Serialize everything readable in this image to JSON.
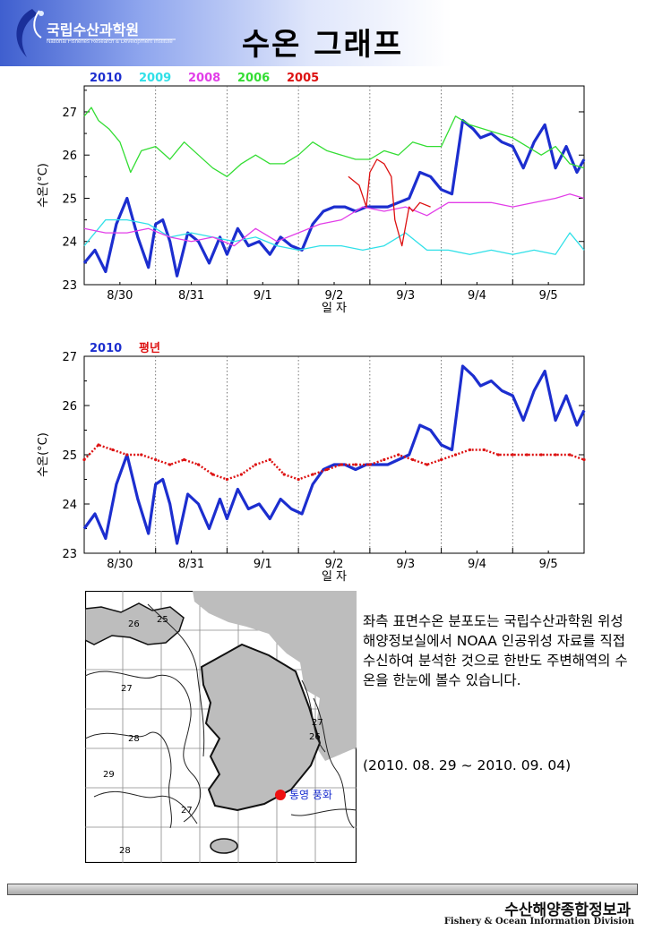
{
  "header": {
    "org_name": "국립수산과학원",
    "org_sub": "National Fisheries Research & Development Institute",
    "title": "수온 그래프"
  },
  "chart_data": [
    {
      "type": "line",
      "xlabel": "일 자",
      "ylabel": "수온(°C)",
      "ylim": [
        23,
        27.6
      ],
      "yticks": [
        23,
        24,
        25,
        26,
        27
      ],
      "xlim": [
        0,
        7
      ],
      "xtick_labels": [
        "8/30",
        "8/31",
        "9/1",
        "9/2",
        "9/3",
        "9/4",
        "9/5"
      ],
      "grid": "vertical dotted day boundaries",
      "legend": "top-left",
      "series": [
        {
          "name": "2010",
          "color": "#1c2ecf",
          "x": [
            0,
            0.15,
            0.3,
            0.45,
            0.6,
            0.75,
            0.9,
            1.0,
            1.1,
            1.2,
            1.3,
            1.45,
            1.6,
            1.75,
            1.9,
            2.0,
            2.15,
            2.3,
            2.45,
            2.6,
            2.75,
            2.9,
            3.05,
            3.2,
            3.35,
            3.5,
            3.65,
            3.8,
            3.95,
            4.1,
            4.25,
            4.4,
            4.55,
            4.7,
            4.85,
            5.0,
            5.15,
            5.3,
            5.45,
            5.55,
            5.7,
            5.85,
            6.0,
            6.15,
            6.3,
            6.45,
            6.6,
            6.75,
            6.9,
            7.0
          ],
          "values": [
            23.5,
            23.8,
            23.3,
            24.4,
            25.0,
            24.1,
            23.4,
            24.4,
            24.5,
            24.0,
            23.2,
            24.2,
            24.0,
            23.5,
            24.1,
            23.7,
            24.3,
            23.9,
            24.0,
            23.7,
            24.1,
            23.9,
            23.8,
            24.4,
            24.7,
            24.8,
            24.8,
            24.7,
            24.8,
            24.8,
            24.8,
            24.9,
            25.0,
            25.6,
            25.5,
            25.2,
            25.1,
            26.8,
            26.6,
            26.4,
            26.5,
            26.3,
            26.2,
            25.7,
            26.3,
            26.7,
            25.7,
            26.2,
            25.6,
            25.9
          ]
        },
        {
          "name": "2009",
          "color": "#30e0e8",
          "x": [
            0,
            0.3,
            0.6,
            0.9,
            1.2,
            1.5,
            1.8,
            2.1,
            2.4,
            2.7,
            3.0,
            3.3,
            3.6,
            3.9,
            4.2,
            4.5,
            4.8,
            5.1,
            5.4,
            5.7,
            6.0,
            6.3,
            6.6,
            6.8,
            7.0
          ],
          "values": [
            23.9,
            24.5,
            24.5,
            24.4,
            24.1,
            24.2,
            24.1,
            24.0,
            24.1,
            23.9,
            23.8,
            23.9,
            23.9,
            23.8,
            23.9,
            24.2,
            23.8,
            23.8,
            23.7,
            23.8,
            23.7,
            23.8,
            23.7,
            24.2,
            23.8
          ]
        },
        {
          "name": "2008",
          "color": "#e23ee8",
          "x": [
            0,
            0.3,
            0.6,
            0.9,
            1.2,
            1.5,
            1.8,
            2.1,
            2.4,
            2.7,
            3.0,
            3.3,
            3.6,
            3.9,
            4.2,
            4.5,
            4.8,
            5.1,
            5.4,
            5.7,
            6.0,
            6.3,
            6.6,
            6.8,
            7.0
          ],
          "values": [
            24.3,
            24.2,
            24.2,
            24.3,
            24.1,
            24.0,
            24.1,
            23.9,
            24.3,
            24.0,
            24.2,
            24.4,
            24.5,
            24.8,
            24.7,
            24.8,
            24.6,
            24.9,
            24.9,
            24.9,
            24.8,
            24.9,
            25.0,
            25.1,
            25.0
          ]
        },
        {
          "name": "2006",
          "color": "#33dd33",
          "x": [
            0,
            0.1,
            0.2,
            0.35,
            0.5,
            0.65,
            0.8,
            1.0,
            1.2,
            1.4,
            1.6,
            1.8,
            2.0,
            2.2,
            2.4,
            2.6,
            2.8,
            3.0,
            3.2,
            3.4,
            3.6,
            3.8,
            4.0,
            4.2,
            4.4,
            4.6,
            4.8,
            5.0,
            5.2,
            5.4,
            5.6,
            5.8,
            6.0,
            6.2,
            6.4,
            6.6,
            6.8,
            7.0
          ],
          "values": [
            26.9,
            27.1,
            26.8,
            26.6,
            26.3,
            25.6,
            26.1,
            26.2,
            25.9,
            26.3,
            26.0,
            25.7,
            25.5,
            25.8,
            26.0,
            25.8,
            25.8,
            26.0,
            26.3,
            26.1,
            26.0,
            25.9,
            25.9,
            26.1,
            26.0,
            26.3,
            26.2,
            26.2,
            26.9,
            26.7,
            26.6,
            26.5,
            26.4,
            26.2,
            26.0,
            26.2,
            25.8,
            25.7
          ]
        },
        {
          "name": "2005",
          "color": "#dd1111",
          "x": [
            3.7,
            3.85,
            3.95,
            4.0,
            4.1,
            4.2,
            4.3,
            4.35,
            4.45,
            4.55,
            4.6,
            4.7,
            4.85
          ],
          "values": [
            25.5,
            25.3,
            24.8,
            25.6,
            25.9,
            25.8,
            25.5,
            24.5,
            23.9,
            24.8,
            24.7,
            24.9,
            24.8
          ]
        }
      ]
    },
    {
      "type": "line",
      "xlabel": "일 자",
      "ylabel": "수온(°C)",
      "ylim": [
        23,
        27
      ],
      "yticks": [
        23,
        24,
        25,
        26,
        27
      ],
      "xlim": [
        0,
        7
      ],
      "xtick_labels": [
        "8/30",
        "8/31",
        "9/1",
        "9/2",
        "9/3",
        "9/4",
        "9/5"
      ],
      "grid": "vertical dotted day boundaries",
      "legend": "top-left",
      "series": [
        {
          "name": "2010",
          "color": "#1c2ecf",
          "x": [
            0,
            0.15,
            0.3,
            0.45,
            0.6,
            0.75,
            0.9,
            1.0,
            1.1,
            1.2,
            1.3,
            1.45,
            1.6,
            1.75,
            1.9,
            2.0,
            2.15,
            2.3,
            2.45,
            2.6,
            2.75,
            2.9,
            3.05,
            3.2,
            3.35,
            3.5,
            3.65,
            3.8,
            3.95,
            4.1,
            4.25,
            4.4,
            4.55,
            4.7,
            4.85,
            5.0,
            5.15,
            5.3,
            5.45,
            5.55,
            5.7,
            5.85,
            6.0,
            6.15,
            6.3,
            6.45,
            6.6,
            6.75,
            6.9,
            7.0
          ],
          "values": [
            23.5,
            23.8,
            23.3,
            24.4,
            25.0,
            24.1,
            23.4,
            24.4,
            24.5,
            24.0,
            23.2,
            24.2,
            24.0,
            23.5,
            24.1,
            23.7,
            24.3,
            23.9,
            24.0,
            23.7,
            24.1,
            23.9,
            23.8,
            24.4,
            24.7,
            24.8,
            24.8,
            24.7,
            24.8,
            24.8,
            24.8,
            24.9,
            25.0,
            25.6,
            25.5,
            25.2,
            25.1,
            26.8,
            26.6,
            26.4,
            26.5,
            26.3,
            26.2,
            25.7,
            26.3,
            26.7,
            25.7,
            26.2,
            25.6,
            25.9
          ]
        },
        {
          "name": "평년",
          "color": "#dd1111",
          "x": [
            0,
            0.2,
            0.4,
            0.6,
            0.8,
            1.0,
            1.2,
            1.4,
            1.6,
            1.8,
            2.0,
            2.2,
            2.4,
            2.6,
            2.8,
            3.0,
            3.2,
            3.4,
            3.6,
            3.8,
            4.0,
            4.2,
            4.4,
            4.6,
            4.8,
            5.0,
            5.2,
            5.4,
            5.6,
            5.8,
            6.0,
            6.2,
            6.4,
            6.6,
            6.8,
            7.0
          ],
          "values": [
            24.9,
            25.2,
            25.1,
            25.0,
            25.0,
            24.9,
            24.8,
            24.9,
            24.8,
            24.6,
            24.5,
            24.6,
            24.8,
            24.9,
            24.6,
            24.5,
            24.6,
            24.7,
            24.8,
            24.8,
            24.8,
            24.9,
            25.0,
            24.9,
            24.8,
            24.9,
            25.0,
            25.1,
            25.1,
            25.0,
            25.0,
            25.0,
            25.0,
            25.0,
            25.0,
            24.9
          ]
        }
      ]
    }
  ],
  "map": {
    "contour_labels": [
      "25",
      "26",
      "27",
      "28",
      "27",
      "26",
      "29",
      "27",
      "28"
    ],
    "station_label": "통영 풍화",
    "station_color": "#ee1111"
  },
  "description": {
    "text": "좌측 표면수온 분포도는 국립수산과학원 위성해양정보실에서 NOAA 인공위성 자료를 직접 수신하여 분석한 것으로 한반도 주변해역의 수온을 한눈에 볼수 있습니다.",
    "period": "(2010. 08. 29 ~ 2010. 09. 04)"
  },
  "footer": {
    "kr": "수산해양종합정보과",
    "en": "Fishery & Ocean Information Division"
  }
}
